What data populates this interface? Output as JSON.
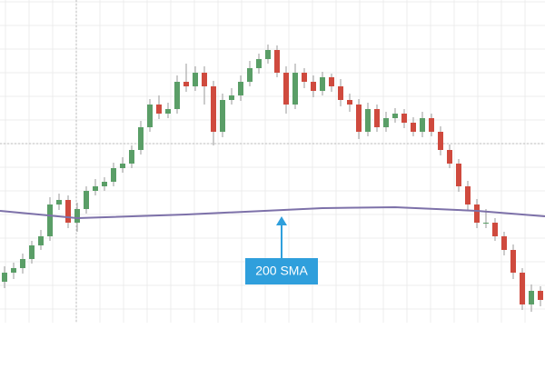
{
  "chart_data": {
    "type": "candlestick",
    "open": [
      45,
      55,
      60,
      70,
      85,
      95,
      130,
      135,
      110,
      125,
      145,
      150,
      155,
      170,
      175,
      190,
      215,
      240,
      230,
      235,
      265,
      260,
      275,
      260,
      210,
      245,
      250,
      265,
      280,
      290,
      300,
      275,
      240,
      275,
      265,
      255,
      270,
      260,
      245,
      240,
      210,
      235,
      215,
      225,
      230,
      220,
      210,
      225,
      210,
      190,
      175,
      150,
      130,
      110,
      110,
      95,
      80,
      55,
      20,
      35
    ],
    "high": [
      62,
      66,
      76,
      90,
      102,
      138,
      142,
      140,
      132,
      150,
      158,
      160,
      176,
      182,
      195,
      222,
      246,
      250,
      242,
      272,
      285,
      282,
      282,
      266,
      252,
      258,
      272,
      288,
      296,
      306,
      305,
      282,
      285,
      280,
      272,
      276,
      274,
      268,
      252,
      246,
      242,
      240,
      232,
      236,
      235,
      226,
      232,
      230,
      216,
      196,
      180,
      156,
      136,
      125,
      115,
      100,
      86,
      60,
      42,
      40
    ],
    "low": [
      38,
      48,
      54,
      65,
      80,
      90,
      124,
      104,
      100,
      120,
      140,
      145,
      150,
      165,
      170,
      185,
      210,
      224,
      225,
      230,
      254,
      255,
      240,
      195,
      204,
      240,
      244,
      260,
      274,
      285,
      270,
      230,
      235,
      258,
      248,
      250,
      254,
      238,
      232,
      202,
      205,
      210,
      210,
      220,
      214,
      205,
      204,
      205,
      184,
      170,
      144,
      124,
      104,
      104,
      90,
      74,
      48,
      14,
      12,
      18
    ],
    "close": [
      55,
      60,
      70,
      85,
      95,
      130,
      135,
      110,
      125,
      145,
      150,
      155,
      170,
      175,
      190,
      215,
      240,
      230,
      235,
      265,
      260,
      275,
      260,
      210,
      245,
      250,
      265,
      280,
      290,
      300,
      275,
      240,
      275,
      265,
      255,
      270,
      260,
      245,
      240,
      210,
      235,
      215,
      225,
      230,
      220,
      210,
      225,
      210,
      190,
      175,
      150,
      130,
      110,
      110,
      95,
      80,
      55,
      20,
      35,
      25
    ],
    "up_color": "#5a9e67",
    "down_color": "#cf4a3e",
    "sma": {
      "x": [
        -0.5,
        8,
        20,
        35,
        43,
        52,
        59.5
      ],
      "values": [
        123,
        115,
        119,
        126,
        127,
        123,
        117
      ],
      "color": "#7d71a9"
    },
    "annotation": "200 SMA",
    "annotation_color": "#2f9fdc",
    "ylim": [
      0,
      355
    ],
    "grid": true
  }
}
